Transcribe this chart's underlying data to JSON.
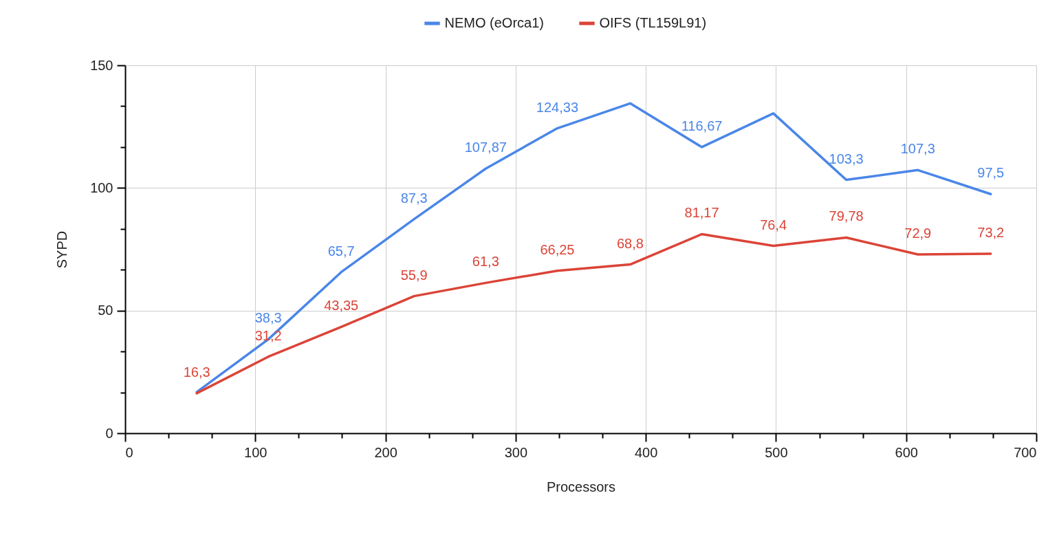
{
  "chart_data": {
    "type": "line",
    "xlabel": "Processors",
    "ylabel": "SYPD",
    "x": [
      55,
      110,
      166,
      222,
      277,
      332,
      388,
      443,
      498,
      554,
      609,
      665
    ],
    "series": [
      {
        "name": "NEMO (eOrca1)",
        "color": "#4a86e8",
        "values": [
          16.8,
          38.3,
          65.7,
          87.3,
          107.87,
          124.33,
          134.5,
          116.67,
          130.4,
          103.3,
          107.3,
          97.5
        ],
        "value_labels": [
          null,
          "38,3",
          "65,7",
          "87,3",
          "107,87",
          "124,33",
          null,
          "116,67",
          null,
          "103,3",
          "107,3",
          "97,5"
        ]
      },
      {
        "name": "OIFS (TL159L91)",
        "color": "#db4437",
        "values": [
          16.3,
          31.2,
          43.35,
          55.9,
          61.3,
          66.25,
          68.8,
          81.17,
          76.4,
          79.78,
          72.9,
          73.2
        ],
        "value_labels": [
          "16,3",
          "31,2",
          "43,35",
          "55,9",
          "61,3",
          "66,25",
          "68,8",
          "81,17",
          "76,4",
          "79,78",
          "72,9",
          "73,2"
        ]
      }
    ],
    "xlim": [
      0,
      700
    ],
    "xticks": [
      0,
      {
        "value": 33.33,
        "label": null
      },
      {
        "value": 66.67,
        "label": null
      },
      100,
      {
        "value": 133.33,
        "label": null
      },
      {
        "value": 166.67,
        "label": null
      },
      200,
      {
        "value": 233.33,
        "label": null
      },
      {
        "value": 266.67,
        "label": null
      },
      300,
      {
        "value": 333.33,
        "label": null
      },
      {
        "value": 366.67,
        "label": null
      },
      400,
      {
        "value": 433.33,
        "label": null
      },
      {
        "value": 466.67,
        "label": null
      },
      500,
      {
        "value": 533.33,
        "label": null
      },
      {
        "value": 566.67,
        "label": null
      },
      600,
      {
        "value": 633.33,
        "label": null
      },
      {
        "value": 666.67,
        "label": null
      },
      700
    ],
    "ylim": [
      0,
      150
    ],
    "yticks": [
      0,
      {
        "value": 16.67,
        "label": null
      },
      {
        "value": 33.33,
        "label": null
      },
      50,
      {
        "value": 66.67,
        "label": null
      },
      {
        "value": 83.33,
        "label": null
      },
      100,
      {
        "value": 116.67,
        "label": null
      },
      {
        "value": 133.33,
        "label": null
      },
      150
    ],
    "grid": true,
    "legend": "top",
    "marker": "none",
    "line_style": "solid"
  }
}
